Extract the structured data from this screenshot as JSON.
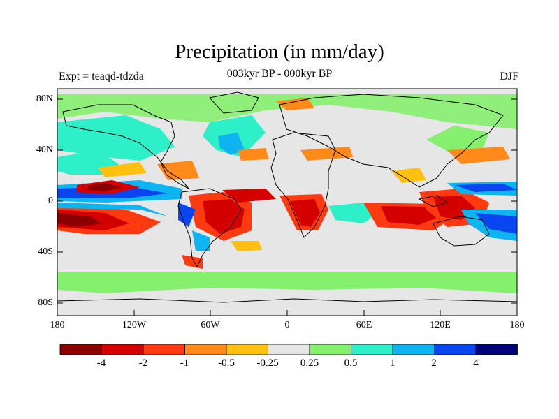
{
  "title": "Precipitation (in mm/day)",
  "experiment_label": "Expt = teaqd-tdzda",
  "period_label": "003kyr BP - 000kyr BP",
  "season_label": "DJF",
  "lat_ticks": [
    "80N",
    "40N",
    "0",
    "40S",
    "80S"
  ],
  "lon_ticks": [
    "180",
    "120W",
    "60W",
    "0",
    "60E",
    "120E",
    "180"
  ],
  "colorbar": {
    "colors": [
      "#8c0000",
      "#d40000",
      "#ff3a10",
      "#ff8a1a",
      "#ffc010",
      "#e6e6e6",
      "#85f06e",
      "#2ef0c8",
      "#0eb4ef",
      "#0a46f0",
      "#00007a"
    ],
    "labels": [
      "-4",
      "-2",
      "-1",
      "-0.5",
      "-0.25",
      "0.25",
      "0.5",
      "1",
      "2",
      "4"
    ]
  },
  "colors": {
    "ocean_background": "#e6e6e6",
    "coastline": "#000000"
  }
}
